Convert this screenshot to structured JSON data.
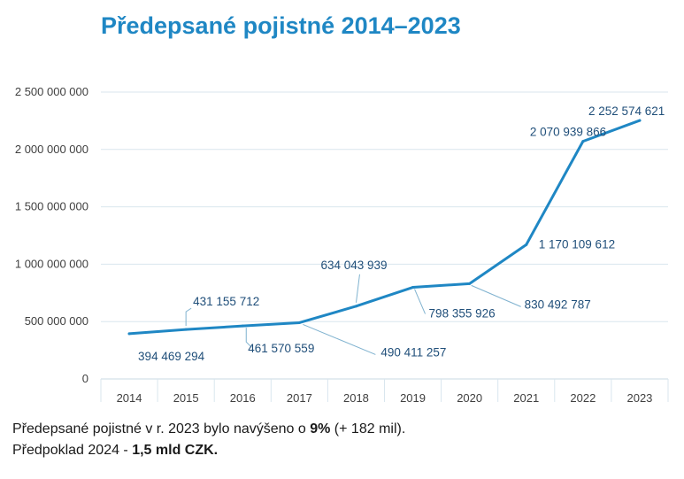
{
  "chart_data": {
    "type": "line",
    "title": "Předepsané pojistné 2014–2023",
    "xlabel": "",
    "ylabel": "",
    "categories": [
      "2014",
      "2015",
      "2016",
      "2017",
      "2018",
      "2019",
      "2020",
      "2021",
      "2022",
      "2023"
    ],
    "series": [
      {
        "values": [
          394469294,
          431155712,
          461570559,
          490411257,
          634043939,
          798355926,
          830492787,
          1170109612,
          2070939866,
          2252574621
        ]
      }
    ],
    "data_labels": [
      "394 469 294",
      "431 155 712",
      "461 570 559",
      "490 411 257",
      "634 043 939",
      "798 355 926",
      "830 492 787",
      "1 170 109 612",
      "2 070 939 866",
      "2 252 574 621"
    ],
    "y_ticks": [
      0,
      500000000,
      1000000000,
      1500000000,
      2000000000,
      2500000000
    ],
    "y_tick_labels": [
      "0",
      "500 000 000",
      "1 000 000 000",
      "1 500 000 000",
      "2 000 000 000",
      "2 500 000 000"
    ],
    "ylim": [
      0,
      2500000000
    ],
    "grid": true,
    "colors": {
      "line": "#1f87c4",
      "grid": "#d9e6ee",
      "leader": "#7fb2cf",
      "title": "#1f87c4"
    }
  },
  "notes": {
    "line1_pre": "Předepsané pojistné v r. 2023 bylo navýšeno o ",
    "line1_bold": "9%",
    "line1_post": " (+ 182 mil).",
    "line2_pre": "Předpoklad 2024 -  ",
    "line2_bold": "1,5 mld CZK."
  }
}
